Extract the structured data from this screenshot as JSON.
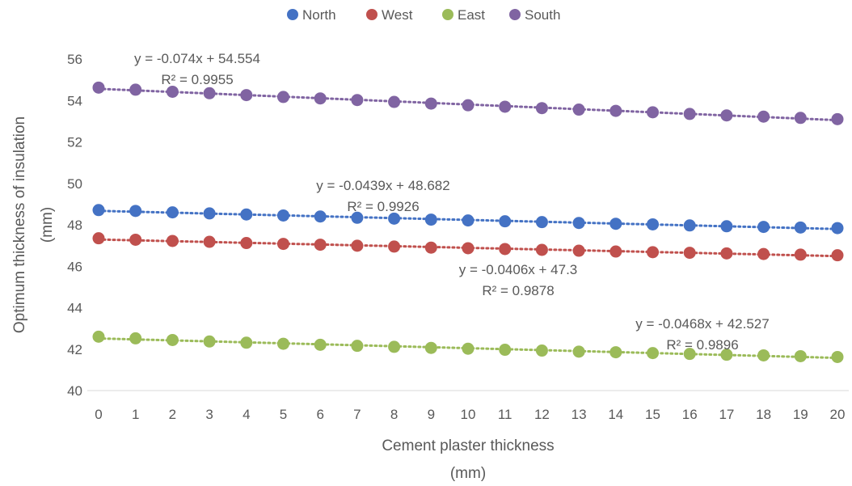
{
  "chart_data": {
    "type": "scatter",
    "xlabel": [
      "Cement plaster thickness",
      "(mm)"
    ],
    "ylabel": [
      "Optimum thickness of insulation",
      "(mm)"
    ],
    "xlim": [
      0,
      20
    ],
    "ylim": [
      40,
      56
    ],
    "xticks": [
      0,
      1,
      2,
      3,
      4,
      5,
      6,
      7,
      8,
      9,
      10,
      11,
      12,
      13,
      14,
      15,
      16,
      17,
      18,
      19,
      20
    ],
    "yticks": [
      40,
      42,
      44,
      46,
      48,
      50,
      52,
      54,
      56
    ],
    "grid": false,
    "legend_position": "top",
    "trendline_style": "dotted",
    "x": [
      0,
      1,
      2,
      3,
      4,
      5,
      6,
      7,
      8,
      9,
      10,
      11,
      12,
      13,
      14,
      15,
      16,
      17,
      18,
      19,
      20
    ],
    "series": [
      {
        "name": "North",
        "color": "#4472C4",
        "values": [
          48.71,
          48.67,
          48.6,
          48.55,
          48.5,
          48.45,
          48.4,
          48.34,
          48.3,
          48.25,
          48.21,
          48.17,
          48.13,
          48.09,
          48.05,
          48.02,
          47.97,
          47.93,
          47.9,
          47.87,
          47.84
        ],
        "trendline": {
          "equation": "y = -0.0439x + 48.682",
          "r2": "R² = 0.9926"
        }
      },
      {
        "name": "West",
        "color": "#C0504D",
        "values": [
          47.35,
          47.28,
          47.22,
          47.18,
          47.12,
          47.08,
          47.04,
          46.99,
          46.95,
          46.9,
          46.87,
          46.83,
          46.79,
          46.75,
          46.71,
          46.68,
          46.65,
          46.62,
          46.59,
          46.56,
          46.53
        ],
        "trendline": {
          "equation": "y = -0.0406x + 47.3",
          "r2": "R² = 0.9878"
        }
      },
      {
        "name": "East",
        "color": "#9BBB59",
        "values": [
          42.6,
          42.52,
          42.44,
          42.37,
          42.31,
          42.26,
          42.21,
          42.16,
          42.11,
          42.06,
          42.02,
          41.97,
          41.93,
          41.88,
          41.85,
          41.81,
          41.77,
          41.73,
          41.7,
          41.66,
          41.62
        ],
        "trendline": {
          "equation": "y = -0.0468x + 42.527",
          "r2": "R² = 0.9896"
        }
      },
      {
        "name": "South",
        "color": "#8064A2",
        "values": [
          54.62,
          54.52,
          54.42,
          54.35,
          54.26,
          54.17,
          54.1,
          54.02,
          53.93,
          53.85,
          53.77,
          53.7,
          53.63,
          53.56,
          53.5,
          53.43,
          53.35,
          53.28,
          53.22,
          53.16,
          53.1
        ],
        "trendline": {
          "equation": "y = -0.074x + 54.554",
          "r2": "R² = 0.9955"
        }
      }
    ]
  }
}
